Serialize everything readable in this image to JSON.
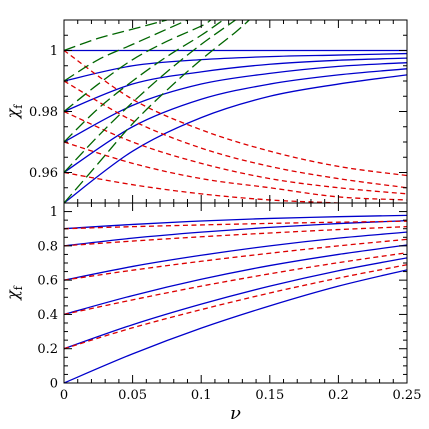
{
  "chart_data": [
    {
      "panel": "top",
      "type": "line",
      "xlabel": "",
      "ylabel": "χ",
      "ylabel_subscript": "f",
      "xlim": [
        0,
        0.25
      ],
      "ylim": [
        0.95,
        1.01
      ],
      "xticks": [
        "0",
        "0.05",
        "0.1",
        "0.15",
        "0.2",
        "0.25"
      ],
      "xtick_values": [
        0,
        0.05,
        0.1,
        0.15,
        0.2,
        0.25
      ],
      "xtick_labels_visible": false,
      "yticks": [
        "0.96",
        "0.98",
        "1"
      ],
      "ytick_values": [
        0.96,
        0.98,
        1.0
      ],
      "grid": false,
      "legend": "none",
      "series": [
        {
          "style": "solid",
          "color": "#0000cc",
          "start": 1.0,
          "x": [
            0,
            0.05,
            0.1,
            0.15,
            0.2,
            0.25
          ],
          "y": [
            1.0,
            1.0,
            1.0,
            1.0,
            1.0,
            1.0
          ]
        },
        {
          "style": "solid",
          "color": "#0000cc",
          "start": 0.99,
          "x": [
            0,
            0.05,
            0.1,
            0.15,
            0.2,
            0.25
          ],
          "y": [
            0.99,
            0.995,
            0.997,
            0.998,
            0.9985,
            0.999
          ]
        },
        {
          "style": "solid",
          "color": "#0000cc",
          "start": 0.98,
          "x": [
            0,
            0.05,
            0.1,
            0.15,
            0.2,
            0.25
          ],
          "y": [
            0.98,
            0.989,
            0.993,
            0.9955,
            0.9968,
            0.9975
          ]
        },
        {
          "style": "solid",
          "color": "#0000cc",
          "start": 0.97,
          "x": [
            0,
            0.05,
            0.1,
            0.15,
            0.2,
            0.25
          ],
          "y": [
            0.97,
            0.982,
            0.989,
            0.9925,
            0.9948,
            0.996
          ]
        },
        {
          "style": "solid",
          "color": "#0000cc",
          "start": 0.96,
          "x": [
            0,
            0.05,
            0.1,
            0.15,
            0.2,
            0.25
          ],
          "y": [
            0.96,
            0.975,
            0.984,
            0.989,
            0.992,
            0.994
          ]
        },
        {
          "style": "solid",
          "color": "#0000cc",
          "start": 0.95,
          "x": [
            0,
            0.05,
            0.1,
            0.15,
            0.2,
            0.25
          ],
          "y": [
            0.95,
            0.967,
            0.978,
            0.985,
            0.989,
            0.992
          ]
        },
        {
          "style": "short-dash",
          "color": "#dd0000",
          "start": 1.0,
          "x": [
            0,
            0.05,
            0.1,
            0.15,
            0.2,
            0.25
          ],
          "y": [
            1.0,
            0.984,
            0.974,
            0.967,
            0.962,
            0.959
          ]
        },
        {
          "style": "short-dash",
          "color": "#dd0000",
          "start": 0.99,
          "x": [
            0,
            0.05,
            0.1,
            0.15,
            0.2,
            0.25
          ],
          "y": [
            0.99,
            0.977,
            0.968,
            0.962,
            0.958,
            0.955
          ]
        },
        {
          "style": "short-dash",
          "color": "#dd0000",
          "start": 0.98,
          "x": [
            0,
            0.05,
            0.1,
            0.15,
            0.2,
            0.25
          ],
          "y": [
            0.98,
            0.97,
            0.963,
            0.958,
            0.955,
            0.953
          ]
        },
        {
          "style": "short-dash",
          "color": "#dd0000",
          "start": 0.97,
          "x": [
            0,
            0.05,
            0.1,
            0.15,
            0.2,
            0.25
          ],
          "y": [
            0.97,
            0.963,
            0.958,
            0.955,
            0.952,
            0.951
          ]
        },
        {
          "style": "short-dash",
          "color": "#dd0000",
          "start": 0.96,
          "x": [
            0,
            0.05,
            0.1,
            0.15,
            0.2,
            0.25
          ],
          "y": [
            0.96,
            0.956,
            0.953,
            0.951,
            0.95,
            0.949
          ]
        },
        {
          "style": "short-dash",
          "color": "#dd0000",
          "start": 0.95,
          "x": [
            0,
            0.05,
            0.1,
            0.15,
            0.2,
            0.25
          ],
          "y": [
            0.95,
            0.9495,
            0.949,
            0.9485,
            0.948,
            0.9475
          ]
        },
        {
          "style": "long-dash",
          "color": "#006600",
          "start": 1.0,
          "x": [
            0,
            0.025,
            0.05,
            0.075
          ],
          "y": [
            1.0,
            1.004,
            1.007,
            1.01
          ]
        },
        {
          "style": "long-dash",
          "color": "#006600",
          "start": 0.99,
          "x": [
            0,
            0.025,
            0.05,
            0.075,
            0.09
          ],
          "y": [
            0.99,
            0.997,
            1.002,
            1.007,
            1.01
          ]
        },
        {
          "style": "long-dash",
          "color": "#006600",
          "start": 0.98,
          "x": [
            0,
            0.025,
            0.05,
            0.075,
            0.1,
            0.107
          ],
          "y": [
            0.98,
            0.989,
            0.997,
            1.003,
            1.008,
            1.01
          ]
        },
        {
          "style": "long-dash",
          "color": "#006600",
          "start": 0.97,
          "x": [
            0,
            0.025,
            0.05,
            0.075,
            0.1,
            0.116
          ],
          "y": [
            0.97,
            0.981,
            0.99,
            0.998,
            1.005,
            1.01
          ]
        },
        {
          "style": "long-dash",
          "color": "#006600",
          "start": 0.96,
          "x": [
            0,
            0.025,
            0.05,
            0.075,
            0.1,
            0.125
          ],
          "y": [
            0.96,
            0.972,
            0.983,
            0.993,
            1.002,
            1.01
          ]
        },
        {
          "style": "long-dash",
          "color": "#006600",
          "start": 0.95,
          "x": [
            0,
            0.025,
            0.05,
            0.075,
            0.1,
            0.125,
            0.135
          ],
          "y": [
            0.95,
            0.963,
            0.976,
            0.987,
            0.997,
            1.006,
            1.01
          ]
        }
      ]
    },
    {
      "panel": "bottom",
      "type": "line",
      "xlabel": "ν",
      "ylabel": "χ",
      "ylabel_subscript": "f",
      "xlim": [
        0,
        0.25
      ],
      "ylim": [
        0,
        1.05
      ],
      "xticks": [
        "0",
        "0.05",
        "0.1",
        "0.15",
        "0.2",
        "0.25"
      ],
      "xtick_values": [
        0,
        0.05,
        0.1,
        0.15,
        0.2,
        0.25
      ],
      "xtick_labels_visible": true,
      "yticks": [
        "0",
        "0.2",
        "0.4",
        "0.6",
        "0.8",
        "1"
      ],
      "ytick_values": [
        0,
        0.2,
        0.4,
        0.6,
        0.8,
        1.0
      ],
      "grid": false,
      "legend": "none",
      "series": [
        {
          "style": "solid",
          "color": "#0000cc",
          "start": 0.9,
          "x": [
            0,
            0.05,
            0.1,
            0.15,
            0.2,
            0.25
          ],
          "y": [
            0.9,
            0.925,
            0.945,
            0.96,
            0.97,
            0.978
          ]
        },
        {
          "style": "solid",
          "color": "#0000cc",
          "start": 0.8,
          "x": [
            0,
            0.05,
            0.1,
            0.15,
            0.2,
            0.25
          ],
          "y": [
            0.8,
            0.845,
            0.88,
            0.908,
            0.93,
            0.947
          ]
        },
        {
          "style": "solid",
          "color": "#0000cc",
          "start": 0.6,
          "x": [
            0,
            0.05,
            0.1,
            0.15,
            0.2,
            0.25
          ],
          "y": [
            0.6,
            0.68,
            0.745,
            0.8,
            0.845,
            0.88
          ]
        },
        {
          "style": "solid",
          "color": "#0000cc",
          "start": 0.4,
          "x": [
            0,
            0.05,
            0.1,
            0.15,
            0.2,
            0.25
          ],
          "y": [
            0.4,
            0.51,
            0.605,
            0.685,
            0.75,
            0.805
          ]
        },
        {
          "style": "solid",
          "color": "#0000cc",
          "start": 0.2,
          "x": [
            0,
            0.05,
            0.1,
            0.15,
            0.2,
            0.25
          ],
          "y": [
            0.2,
            0.34,
            0.46,
            0.565,
            0.655,
            0.73
          ]
        },
        {
          "style": "solid",
          "color": "#0000cc",
          "start": 0.0,
          "x": [
            0,
            0.05,
            0.1,
            0.15,
            0.2,
            0.25
          ],
          "y": [
            0.0,
            0.17,
            0.32,
            0.45,
            0.565,
            0.66
          ]
        },
        {
          "style": "short-dash",
          "color": "#dd0000",
          "start": 0.9,
          "x": [
            0,
            0.05,
            0.1,
            0.15,
            0.2,
            0.25
          ],
          "y": [
            0.9,
            0.912,
            0.922,
            0.931,
            0.938,
            0.944
          ]
        },
        {
          "style": "short-dash",
          "color": "#dd0000",
          "start": 0.8,
          "x": [
            0,
            0.05,
            0.1,
            0.15,
            0.2,
            0.25
          ],
          "y": [
            0.8,
            0.828,
            0.853,
            0.875,
            0.895,
            0.912
          ]
        },
        {
          "style": "short-dash",
          "color": "#dd0000",
          "start": 0.6,
          "x": [
            0,
            0.05,
            0.1,
            0.15,
            0.2,
            0.25
          ],
          "y": [
            0.6,
            0.658,
            0.71,
            0.757,
            0.8,
            0.838
          ]
        },
        {
          "style": "short-dash",
          "color": "#dd0000",
          "start": 0.4,
          "x": [
            0,
            0.05,
            0.1,
            0.15,
            0.2,
            0.25
          ],
          "y": [
            0.4,
            0.485,
            0.565,
            0.637,
            0.702,
            0.76
          ]
        },
        {
          "style": "short-dash",
          "color": "#dd0000",
          "start": 0.2,
          "x": [
            0,
            0.05,
            0.1,
            0.15,
            0.2,
            0.25
          ],
          "y": [
            0.2,
            0.322,
            0.428,
            0.525,
            0.612,
            0.69
          ]
        }
      ]
    }
  ]
}
